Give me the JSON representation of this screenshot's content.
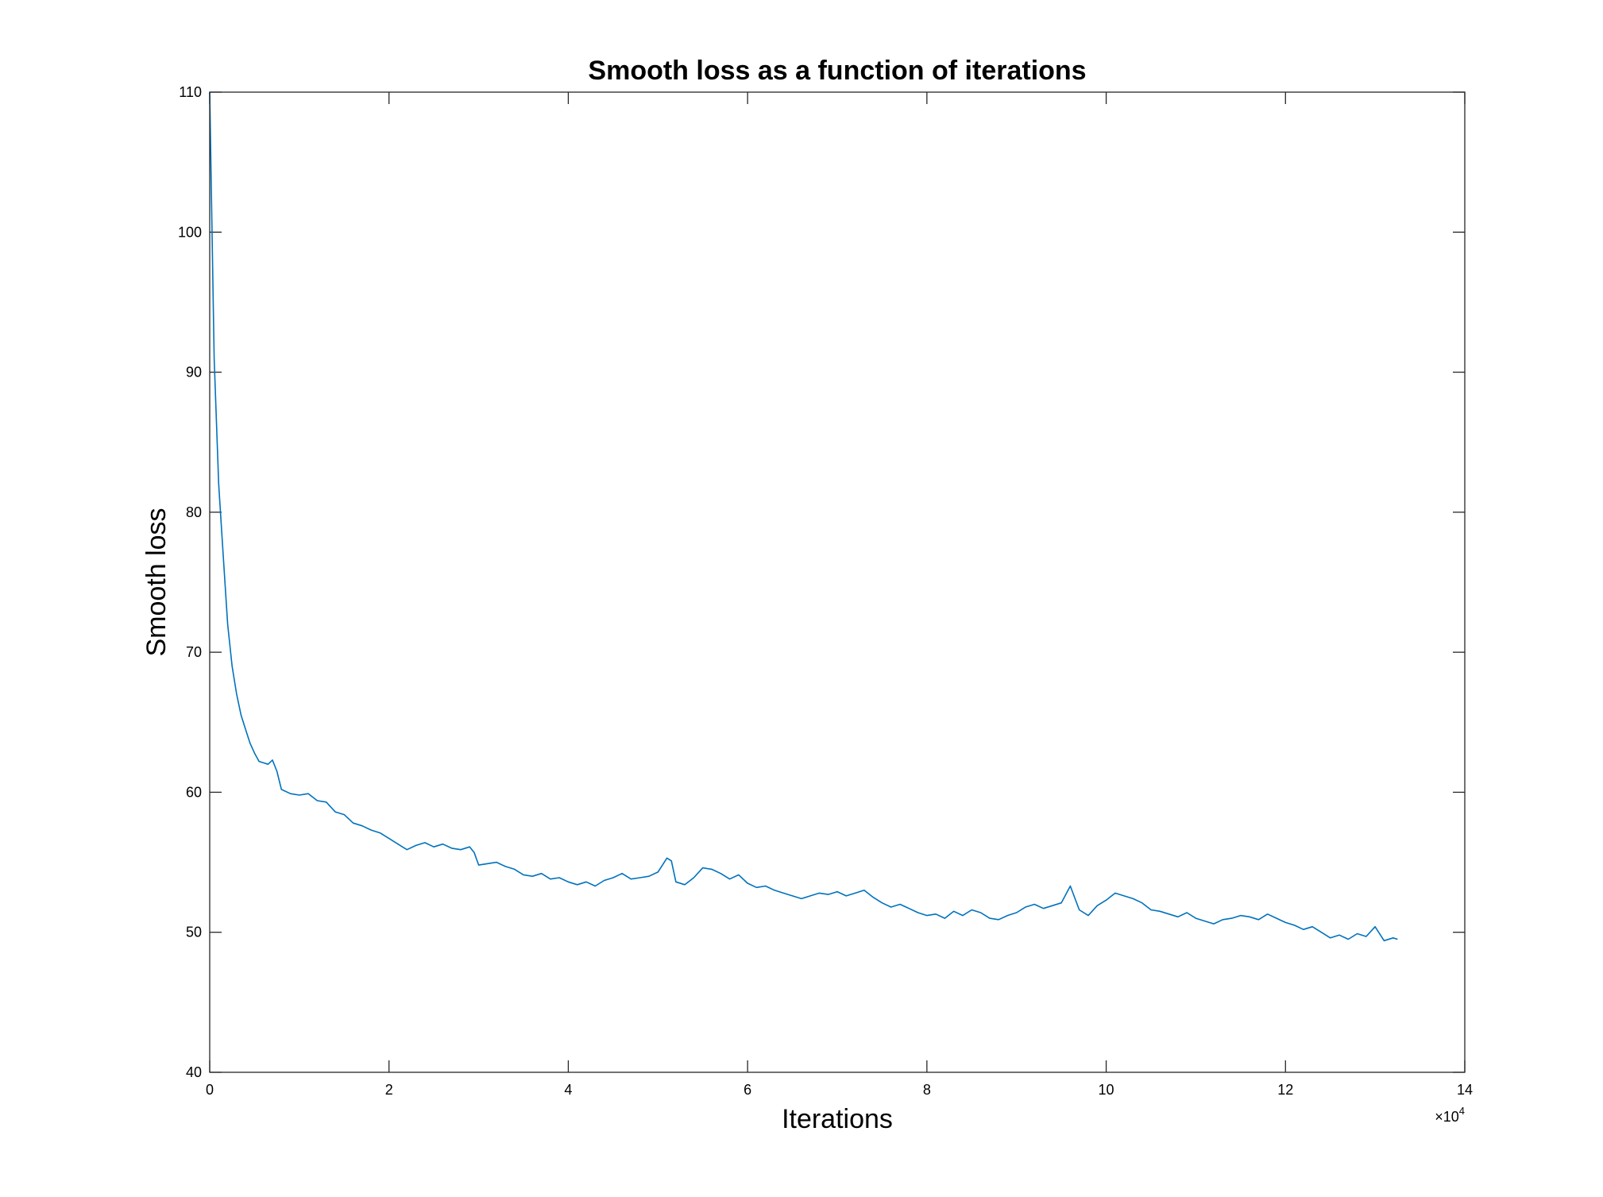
{
  "chart_data": {
    "type": "line",
    "title": "Smooth loss as a function of iterations",
    "xlabel": "Iterations",
    "ylabel": "Smooth loss",
    "x_multiplier": {
      "base": "×10",
      "exponent": "4"
    },
    "xlim": [
      0,
      140000
    ],
    "ylim": [
      40,
      110
    ],
    "x_ticks": [
      0,
      20000,
      40000,
      60000,
      80000,
      100000,
      120000,
      140000
    ],
    "x_tick_labels": [
      "0",
      "2",
      "4",
      "6",
      "8",
      "10",
      "12",
      "14"
    ],
    "y_ticks": [
      40,
      50,
      60,
      70,
      80,
      90,
      100,
      110
    ],
    "y_tick_labels": [
      "40",
      "50",
      "60",
      "70",
      "80",
      "90",
      "100",
      "110"
    ],
    "grid": false,
    "box": true,
    "line_color": "#0072BD",
    "series": [
      {
        "x": [
          0,
          500,
          1000,
          1500,
          2000,
          2500,
          3000,
          3500,
          4000,
          4500,
          5000,
          5500,
          6000,
          6500,
          7000,
          7500,
          8000,
          9000,
          10000,
          11000,
          12000,
          13000,
          14000,
          15000,
          16000,
          17000,
          18000,
          19000,
          20000,
          21000,
          22000,
          23000,
          24000,
          25000,
          26000,
          27000,
          28000,
          29000,
          29500,
          30000,
          31000,
          32000,
          33000,
          34000,
          35000,
          36000,
          37000,
          38000,
          39000,
          40000,
          41000,
          42000,
          43000,
          44000,
          45000,
          46000,
          47000,
          48000,
          49000,
          50000,
          51000,
          51500,
          52000,
          53000,
          54000,
          55000,
          56000,
          57000,
          58000,
          59000,
          60000,
          61000,
          62000,
          63000,
          64000,
          65000,
          66000,
          67000,
          68000,
          69000,
          70000,
          71000,
          72000,
          73000,
          74000,
          75000,
          76000,
          77000,
          78000,
          79000,
          80000,
          81000,
          82000,
          83000,
          84000,
          85000,
          86000,
          87000,
          88000,
          89000,
          90000,
          91000,
          92000,
          93000,
          94000,
          95000,
          96000,
          97000,
          98000,
          99000,
          100000,
          101000,
          102000,
          103000,
          104000,
          105000,
          106000,
          107000,
          108000,
          109000,
          110000,
          111000,
          112000,
          113000,
          114000,
          115000,
          116000,
          117000,
          118000,
          119000,
          120000,
          121000,
          122000,
          123000,
          124000,
          125000,
          126000,
          127000,
          128000,
          129000,
          130000,
          131000,
          132000,
          132500
        ],
        "y": [
          110,
          91,
          82,
          77,
          72,
          69,
          67,
          65.5,
          64.5,
          63.5,
          62.8,
          62.2,
          62.1,
          62.0,
          62.3,
          61.5,
          60.2,
          59.9,
          59.8,
          59.9,
          59.4,
          59.3,
          58.6,
          58.4,
          57.8,
          57.6,
          57.3,
          57.1,
          56.7,
          56.3,
          55.9,
          56.2,
          56.4,
          56.1,
          56.3,
          56.0,
          55.9,
          56.1,
          55.7,
          54.8,
          54.9,
          55.0,
          54.7,
          54.5,
          54.1,
          54.0,
          54.2,
          53.8,
          53.9,
          53.6,
          53.4,
          53.6,
          53.3,
          53.7,
          53.9,
          54.2,
          53.8,
          53.9,
          54.0,
          54.3,
          55.3,
          55.1,
          53.6,
          53.4,
          53.9,
          54.6,
          54.5,
          54.2,
          53.8,
          54.1,
          53.5,
          53.2,
          53.3,
          53.0,
          52.8,
          52.6,
          52.4,
          52.6,
          52.8,
          52.7,
          52.9,
          52.6,
          52.8,
          53.0,
          52.5,
          52.1,
          51.8,
          52.0,
          51.7,
          51.4,
          51.2,
          51.3,
          51.0,
          51.5,
          51.2,
          51.6,
          51.4,
          51.0,
          50.9,
          51.2,
          51.4,
          51.8,
          52.0,
          51.7,
          51.9,
          52.1,
          53.3,
          51.6,
          51.2,
          51.9,
          52.3,
          52.8,
          52.6,
          52.4,
          52.1,
          51.6,
          51.5,
          51.3,
          51.1,
          51.4,
          51.0,
          50.8,
          50.6,
          50.9,
          51.0,
          51.2,
          51.1,
          50.9,
          51.3,
          51.0,
          50.7,
          50.5,
          50.2,
          50.4,
          50.0,
          49.6,
          49.8,
          49.5,
          49.9,
          49.7,
          50.4,
          49.4,
          49.6,
          49.5
        ]
      }
    ]
  }
}
